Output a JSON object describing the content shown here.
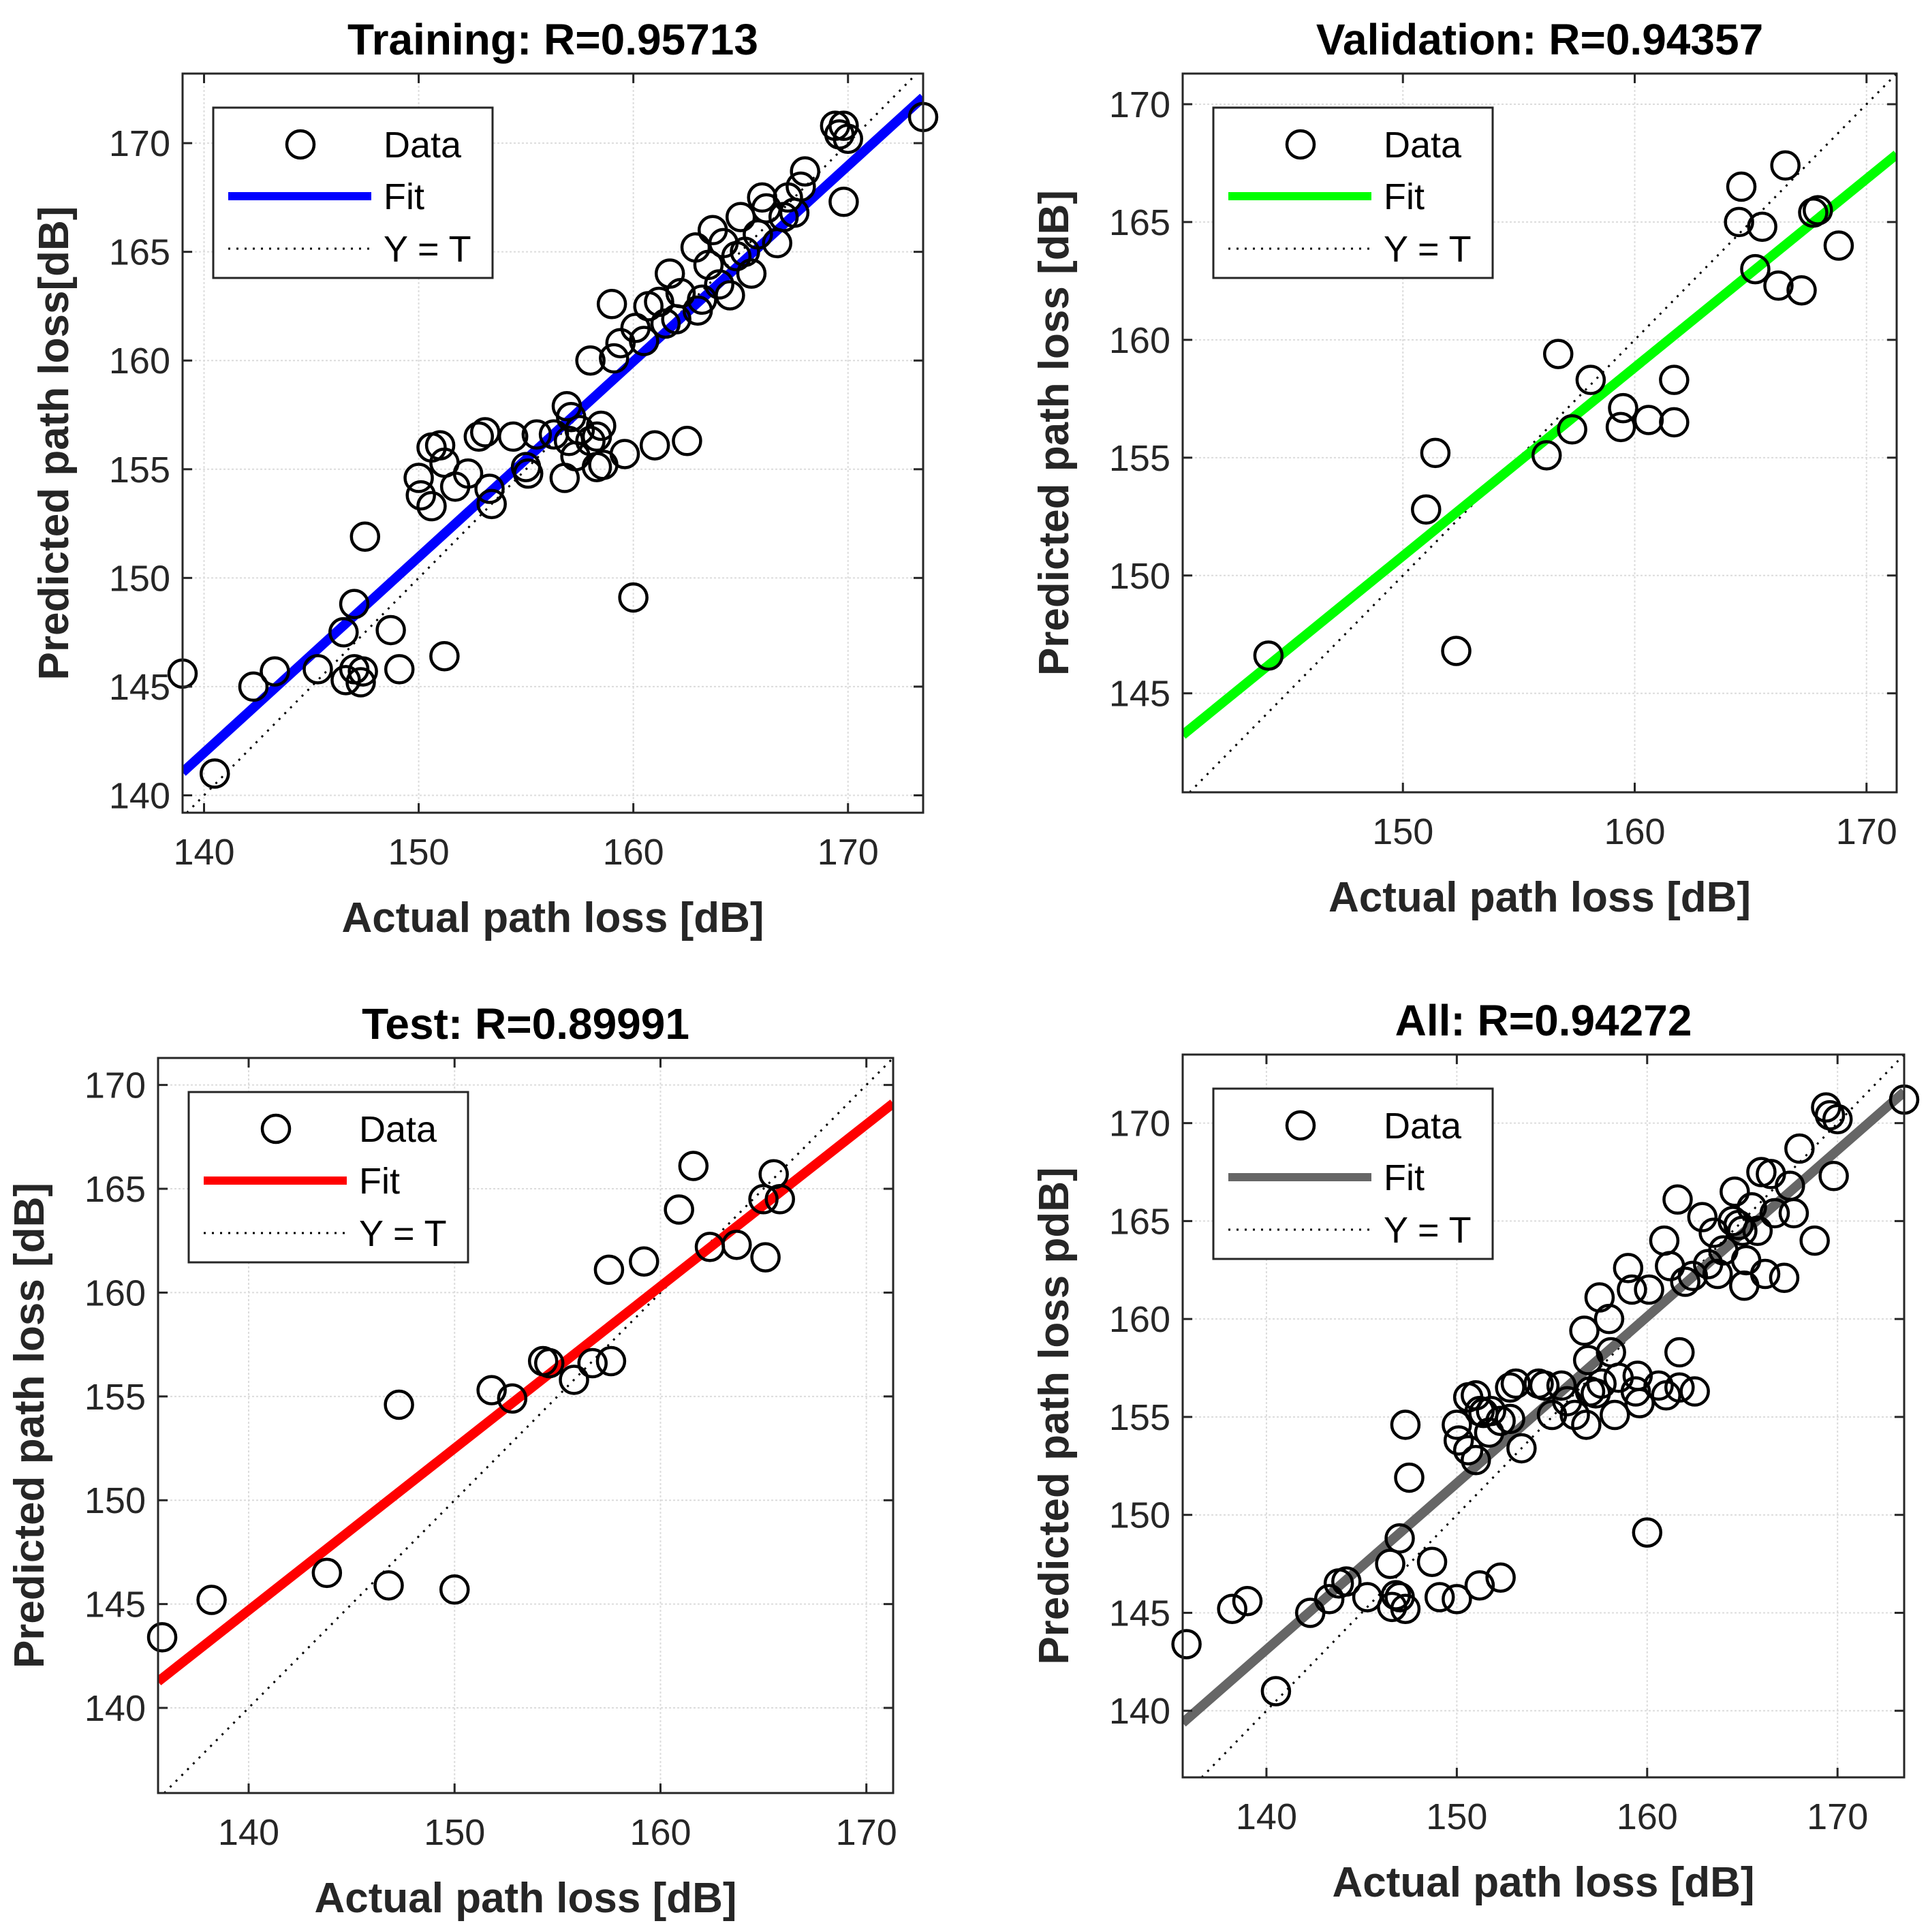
{
  "chart_data": [
    {
      "type": "scatter",
      "title": "Training: R=0.95713",
      "xlabel": "Actual path loss [dB]",
      "ylabel": "Predicted path loss[dB]",
      "xlim": [
        139,
        173.5
      ],
      "ylim": [
        139.2,
        173.2
      ],
      "xticks": [
        140,
        150,
        160,
        170
      ],
      "yticks": [
        140,
        145,
        150,
        155,
        160,
        165,
        170
      ],
      "grid": true,
      "fit_color": "#0000ff",
      "fit": {
        "slope": 0.9,
        "intercept": 15.96
      },
      "legend": [
        "Data",
        "Fit",
        "Y = T"
      ],
      "points": [
        [
          139,
          145.6
        ],
        [
          140.5,
          141
        ],
        [
          142.3,
          145
        ],
        [
          143.3,
          145.7
        ],
        [
          145.3,
          145.8
        ],
        [
          146.5,
          147.5
        ],
        [
          146.6,
          145.3
        ],
        [
          147,
          148.8
        ],
        [
          147,
          145.8
        ],
        [
          147.3,
          145.2
        ],
        [
          147.4,
          145.7
        ],
        [
          147.5,
          151.9
        ],
        [
          148.7,
          147.6
        ],
        [
          149.1,
          145.8
        ],
        [
          150,
          154.6
        ],
        [
          150.1,
          153.8
        ],
        [
          150.6,
          153.3
        ],
        [
          150.6,
          156
        ],
        [
          151,
          156.1
        ],
        [
          151.2,
          146.4
        ],
        [
          151.2,
          155.3
        ],
        [
          151.7,
          154.2
        ],
        [
          152.3,
          154.8
        ],
        [
          152.8,
          156.5
        ],
        [
          153.1,
          156.7
        ],
        [
          153.3,
          154.1
        ],
        [
          153.4,
          153.4
        ],
        [
          154.4,
          156.5
        ],
        [
          155,
          155.1
        ],
        [
          155.1,
          154.8
        ],
        [
          155.5,
          156.6
        ],
        [
          156.3,
          156.6
        ],
        [
          156.8,
          154.6
        ],
        [
          156.9,
          157.9
        ],
        [
          157,
          156.3
        ],
        [
          157.1,
          157.4
        ],
        [
          157.3,
          155.6
        ],
        [
          157.5,
          156.8
        ],
        [
          158,
          160
        ],
        [
          158,
          156.3
        ],
        [
          158.3,
          155.1
        ],
        [
          158.3,
          156.5
        ],
        [
          158.5,
          157
        ],
        [
          158.6,
          155.2
        ],
        [
          159,
          162.6
        ],
        [
          159.1,
          160.1
        ],
        [
          159.4,
          160.8
        ],
        [
          159.6,
          155.7
        ],
        [
          160,
          149.1
        ],
        [
          160.1,
          161.5
        ],
        [
          160.5,
          160.9
        ],
        [
          160.7,
          162.5
        ],
        [
          161,
          156.1
        ],
        [
          161.2,
          162.7
        ],
        [
          161.5,
          161.7
        ],
        [
          161.7,
          164
        ],
        [
          162,
          161.9
        ],
        [
          162.2,
          163.1
        ],
        [
          162.5,
          156.3
        ],
        [
          162.9,
          165.2
        ],
        [
          163,
          162.3
        ],
        [
          163.2,
          162.8
        ],
        [
          163.5,
          164.4
        ],
        [
          163.7,
          166
        ],
        [
          164,
          163.5
        ],
        [
          164.2,
          165.4
        ],
        [
          164.5,
          163
        ],
        [
          164.8,
          164.8
        ],
        [
          165,
          166.6
        ],
        [
          165.2,
          165
        ],
        [
          165.5,
          164
        ],
        [
          165.8,
          165.8
        ],
        [
          166,
          167.5
        ],
        [
          166.2,
          167
        ],
        [
          166.7,
          165.4
        ],
        [
          167,
          166.6
        ],
        [
          167.2,
          167.5
        ],
        [
          167.5,
          166.8
        ],
        [
          167.8,
          168
        ],
        [
          168,
          168.7
        ],
        [
          169.4,
          170.8
        ],
        [
          169.6,
          170.4
        ],
        [
          169.8,
          170.8
        ],
        [
          169.8,
          167.3
        ],
        [
          170,
          170.2
        ],
        [
          173.5,
          171.2
        ]
      ]
    },
    {
      "type": "scatter",
      "title": "Validation: R=0.94357",
      "xlabel": "Actual path loss [dB]",
      "ylabel": "Predicted path loss [dB]",
      "xlim": [
        140.5,
        171.3
      ],
      "ylim": [
        140.8,
        171.3
      ],
      "xticks": [
        150,
        160,
        170
      ],
      "yticks": [
        145,
        150,
        155,
        160,
        165,
        170
      ],
      "grid": true,
      "fit_color": "#00ff00",
      "fit": {
        "slope": 0.8,
        "intercept": 30.83
      },
      "legend": [
        "Data",
        "Fit",
        "Y = T"
      ],
      "points": [
        [
          144.2,
          146.6
        ],
        [
          151,
          152.8
        ],
        [
          151.4,
          155.2
        ],
        [
          152.3,
          146.8
        ],
        [
          156.2,
          155.1
        ],
        [
          156.7,
          159.4
        ],
        [
          157.3,
          156.2
        ],
        [
          158.1,
          158.3
        ],
        [
          159.4,
          156.3
        ],
        [
          159.5,
          157.1
        ],
        [
          160.6,
          156.6
        ],
        [
          161.7,
          158.3
        ],
        [
          161.7,
          156.5
        ],
        [
          164.5,
          165
        ],
        [
          164.6,
          166.5
        ],
        [
          165.2,
          163
        ],
        [
          165.5,
          164.8
        ],
        [
          166.2,
          162.3
        ],
        [
          166.5,
          167.4
        ],
        [
          167.2,
          162.1
        ],
        [
          167.7,
          165.4
        ],
        [
          167.9,
          165.5
        ],
        [
          168.8,
          164
        ]
      ]
    },
    {
      "type": "scatter",
      "title": "Test: R=0.89991",
      "xlabel": "Actual path loss [dB]",
      "ylabel": "Predicted path loss [dB]",
      "xlim": [
        135.6,
        171.3
      ],
      "ylim": [
        135.9,
        171.3
      ],
      "xticks": [
        140,
        150,
        160,
        170
      ],
      "yticks": [
        140,
        145,
        150,
        155,
        160,
        165,
        170
      ],
      "grid": true,
      "fit_color": "#ff0000",
      "fit": {
        "slope": 0.78,
        "intercept": 35.5
      },
      "legend": [
        "Data",
        "Fit",
        "Y = T"
      ],
      "points": [
        [
          135.8,
          143.4
        ],
        [
          138.2,
          145.2
        ],
        [
          143.8,
          146.5
        ],
        [
          146.8,
          145.9
        ],
        [
          147.3,
          154.6
        ],
        [
          150,
          145.7
        ],
        [
          151.8,
          155.3
        ],
        [
          152.8,
          154.9
        ],
        [
          154.3,
          156.7
        ],
        [
          154.6,
          156.6
        ],
        [
          155.8,
          155.8
        ],
        [
          156.7,
          156.6
        ],
        [
          157.5,
          161.1
        ],
        [
          157.6,
          156.7
        ],
        [
          159.2,
          161.5
        ],
        [
          160.9,
          164
        ],
        [
          161.6,
          166.1
        ],
        [
          162.4,
          162.2
        ],
        [
          163.7,
          162.3
        ],
        [
          165,
          164.5
        ],
        [
          165.1,
          161.7
        ],
        [
          165.5,
          165.7
        ],
        [
          165.8,
          164.5
        ]
      ]
    },
    {
      "type": "scatter",
      "title": "All: R=0.94272",
      "xlabel": "Actual path loss [dB]",
      "ylabel": "Predicted path loss pdB]",
      "xlim": [
        135.6,
        173.5
      ],
      "ylim": [
        136.6,
        173.5
      ],
      "xticks": [
        140,
        150,
        160,
        170
      ],
      "yticks": [
        140,
        145,
        150,
        155,
        160,
        165,
        170
      ],
      "grid": true,
      "fit_color": "#666666",
      "fit": {
        "slope": 0.85,
        "intercept": 24.12
      },
      "legend": [
        "Data",
        "Fit",
        "Y = T"
      ],
      "points": [
        [
          135.8,
          143.4
        ],
        [
          138.2,
          145.2
        ],
        [
          139,
          145.6
        ],
        [
          140.5,
          141
        ],
        [
          142.3,
          145
        ],
        [
          143.3,
          145.7
        ],
        [
          143.8,
          146.5
        ],
        [
          144.2,
          146.6
        ],
        [
          145.3,
          145.8
        ],
        [
          146.5,
          147.5
        ],
        [
          146.6,
          145.3
        ],
        [
          146.8,
          145.9
        ],
        [
          147,
          148.8
        ],
        [
          147,
          145.8
        ],
        [
          147.3,
          154.6
        ],
        [
          147.3,
          145.2
        ],
        [
          147.5,
          151.9
        ],
        [
          148.7,
          147.6
        ],
        [
          149.1,
          145.8
        ],
        [
          150,
          145.7
        ],
        [
          150,
          154.6
        ],
        [
          150.1,
          153.8
        ],
        [
          150.6,
          153.3
        ],
        [
          150.6,
          156
        ],
        [
          151,
          152.8
        ],
        [
          151,
          156.1
        ],
        [
          151.2,
          146.4
        ],
        [
          151.2,
          155.3
        ],
        [
          151.4,
          155.2
        ],
        [
          151.7,
          154.2
        ],
        [
          151.8,
          155.3
        ],
        [
          152.3,
          146.8
        ],
        [
          152.3,
          154.8
        ],
        [
          152.8,
          156.5
        ],
        [
          152.8,
          154.9
        ],
        [
          153.1,
          156.7
        ],
        [
          153.4,
          153.4
        ],
        [
          154.3,
          156.7
        ],
        [
          154.6,
          156.6
        ],
        [
          155,
          155.1
        ],
        [
          155.5,
          156.6
        ],
        [
          155.8,
          155.8
        ],
        [
          156.2,
          155.1
        ],
        [
          156.7,
          159.4
        ],
        [
          156.8,
          154.6
        ],
        [
          156.9,
          157.9
        ],
        [
          157,
          156.3
        ],
        [
          157.3,
          156.2
        ],
        [
          157.5,
          161.1
        ],
        [
          157.6,
          156.7
        ],
        [
          158,
          160
        ],
        [
          158.1,
          158.3
        ],
        [
          158.3,
          155.1
        ],
        [
          158.5,
          157
        ],
        [
          159,
          162.6
        ],
        [
          159.2,
          161.5
        ],
        [
          159.4,
          156.3
        ],
        [
          159.5,
          157.1
        ],
        [
          159.6,
          155.7
        ],
        [
          160,
          149.1
        ],
        [
          160.1,
          161.5
        ],
        [
          160.6,
          156.6
        ],
        [
          160.9,
          164
        ],
        [
          161,
          156.1
        ],
        [
          161.2,
          162.7
        ],
        [
          161.6,
          166.1
        ],
        [
          161.7,
          158.3
        ],
        [
          161.7,
          156.5
        ],
        [
          162,
          161.9
        ],
        [
          162.4,
          162.2
        ],
        [
          162.5,
          156.3
        ],
        [
          162.9,
          165.2
        ],
        [
          163.2,
          162.8
        ],
        [
          163.5,
          164.4
        ],
        [
          163.7,
          162.3
        ],
        [
          164,
          163.5
        ],
        [
          164.5,
          165
        ],
        [
          164.6,
          166.5
        ],
        [
          164.8,
          164.8
        ],
        [
          165,
          164.5
        ],
        [
          165.1,
          161.7
        ],
        [
          165.2,
          163
        ],
        [
          165.5,
          165.7
        ],
        [
          165.8,
          164.5
        ],
        [
          166,
          167.5
        ],
        [
          166.2,
          162.3
        ],
        [
          166.5,
          167.4
        ],
        [
          166.7,
          165.4
        ],
        [
          167.2,
          162.1
        ],
        [
          167.5,
          166.8
        ],
        [
          167.7,
          165.4
        ],
        [
          168,
          168.7
        ],
        [
          168.8,
          164
        ],
        [
          169.4,
          170.8
        ],
        [
          169.6,
          170.4
        ],
        [
          169.8,
          167.3
        ],
        [
          170,
          170.2
        ],
        [
          173.5,
          171.2
        ]
      ]
    }
  ]
}
